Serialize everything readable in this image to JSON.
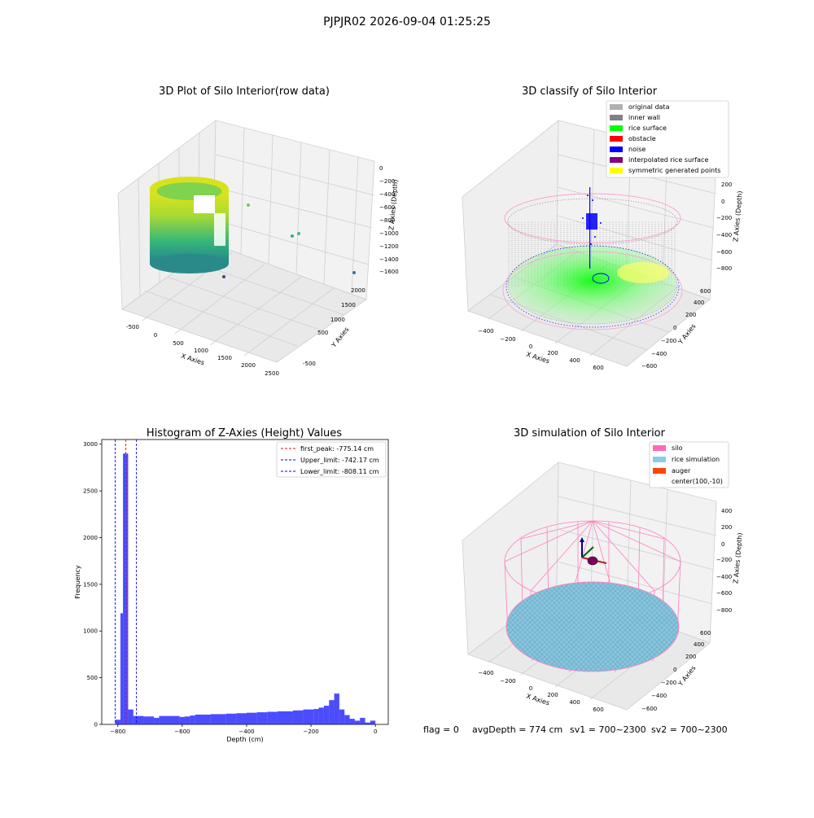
{
  "suptitle": "PJPJR02 2026-09-04 01:25:25",
  "colors": {
    "histogram": "#0000ff",
    "first_peak": "#ff0000",
    "limits": "#0000ff"
  },
  "chart_data": [
    {
      "type": "scatter",
      "title": "3D Plot of Silo Interior(row data)",
      "xlabel": "X Axies",
      "ylabel": "Y Axies",
      "zlabel": "Z Axies (Depth)",
      "x_ticks": [
        "-500",
        "0",
        "500",
        "1000",
        "1500",
        "2000",
        "2500"
      ],
      "y_ticks": [
        "-500",
        "0",
        "500",
        "1000",
        "1500",
        "2000"
      ],
      "z_ticks": [
        "0",
        "−200",
        "−400",
        "−600",
        "−800",
        "−1000",
        "−1200",
        "−1400",
        "−1600"
      ],
      "colormap": "viridis",
      "grid": true
    },
    {
      "type": "scatter",
      "title": "3D classify of Silo Interior",
      "xlabel": "X Axies",
      "ylabel": "Y Axies",
      "zlabel": "Z Axies (Depth)",
      "x_ticks": [
        "−400",
        "−200",
        "0",
        "200",
        "400",
        "600"
      ],
      "y_ticks": [
        "−600",
        "−400",
        "−200",
        "0",
        "200",
        "400",
        "600"
      ],
      "z_ticks": [
        "200",
        "0",
        "−200",
        "−400",
        "−600",
        "−800"
      ],
      "legend": [
        {
          "label": "original data",
          "color": "#b0b0b0"
        },
        {
          "label": "inner wall",
          "color": "#808080"
        },
        {
          "label": "rice surface",
          "color": "#00ff00"
        },
        {
          "label": "obstacle",
          "color": "#ff0000"
        },
        {
          "label": "noise",
          "color": "#0000ff"
        },
        {
          "label": "interpolated rice surface",
          "color": "#800080"
        },
        {
          "label": "symmetric generated points",
          "color": "#ffff00"
        }
      ],
      "legend_position": "top-right",
      "grid": true
    },
    {
      "type": "bar",
      "title": "Histogram of Z-Axies (Height) Values",
      "xlabel": "Depth (cm)",
      "ylabel": "Frequency",
      "xlim": [
        -850,
        40
      ],
      "ylim": [
        0,
        3050
      ],
      "x_ticks": [
        -800,
        -600,
        -400,
        -200,
        0
      ],
      "y_ticks": [
        0,
        500,
        1000,
        1500,
        2000,
        2500,
        3000
      ],
      "bins": [
        [
          -808,
          -792,
          50
        ],
        [
          -792,
          -784,
          1190
        ],
        [
          -784,
          -776,
          2900
        ],
        [
          -776,
          -768,
          2900
        ],
        [
          -768,
          -752,
          160
        ],
        [
          -752,
          -720,
          90
        ],
        [
          -720,
          -688,
          85
        ],
        [
          -688,
          -672,
          70
        ],
        [
          -672,
          -608,
          90
        ],
        [
          -608,
          -592,
          80
        ],
        [
          -592,
          -576,
          85
        ],
        [
          -576,
          -560,
          95
        ],
        [
          -560,
          -512,
          105
        ],
        [
          -512,
          -464,
          110
        ],
        [
          -464,
          -432,
          115
        ],
        [
          -432,
          -400,
          120
        ],
        [
          -400,
          -368,
          125
        ],
        [
          -368,
          -336,
          130
        ],
        [
          -336,
          -304,
          135
        ],
        [
          -304,
          -256,
          140
        ],
        [
          -256,
          -224,
          150
        ],
        [
          -224,
          -192,
          160
        ],
        [
          -192,
          -176,
          165
        ],
        [
          -176,
          -160,
          180
        ],
        [
          -160,
          -144,
          200
        ],
        [
          -144,
          -128,
          260
        ],
        [
          -128,
          -112,
          330
        ],
        [
          -112,
          -96,
          160
        ],
        [
          -96,
          -80,
          100
        ],
        [
          -80,
          -64,
          60
        ],
        [
          -64,
          -48,
          40
        ],
        [
          -48,
          -32,
          70
        ],
        [
          -32,
          -16,
          20
        ],
        [
          -16,
          0,
          40
        ]
      ],
      "vlines": [
        {
          "label": "first_peak: -775.14 cm",
          "x": -775.14,
          "color": "#ff0000"
        },
        {
          "label": "Upper_limit: -742.17 cm",
          "x": -742.17,
          "color": "#0000ff"
        },
        {
          "label": "Lower_limit: -808.11 cm",
          "x": -808.11,
          "color": "#0000ff"
        }
      ],
      "legend_position": "top-right"
    },
    {
      "type": "scatter",
      "title": "3D simulation of Silo Interior",
      "xlabel": "X Axies",
      "ylabel": "Y Axies",
      "zlabel": "Z Axies (Depth)",
      "x_ticks": [
        "−400",
        "−200",
        "0",
        "200",
        "400",
        "600"
      ],
      "y_ticks": [
        "−600",
        "−400",
        "−200",
        "0",
        "200",
        "400",
        "600"
      ],
      "z_ticks": [
        "400",
        "200",
        "0",
        "−200",
        "−400",
        "−600",
        "−800"
      ],
      "legend": [
        {
          "label": "silo",
          "color": "#ff69b4"
        },
        {
          "label": "rice simulation",
          "color": "#87ceeb"
        },
        {
          "label": "auger",
          "color": "#ff4500"
        },
        {
          "label": "center(100,-10)",
          "color": ""
        }
      ],
      "legend_position": "top-right",
      "grid": true
    }
  ],
  "footer": {
    "flag": "flag = 0",
    "avg": "avgDepth = 774 cm",
    "sv1": "sv1 = 700~2300",
    "sv2": "sv2 = 700~2300"
  }
}
